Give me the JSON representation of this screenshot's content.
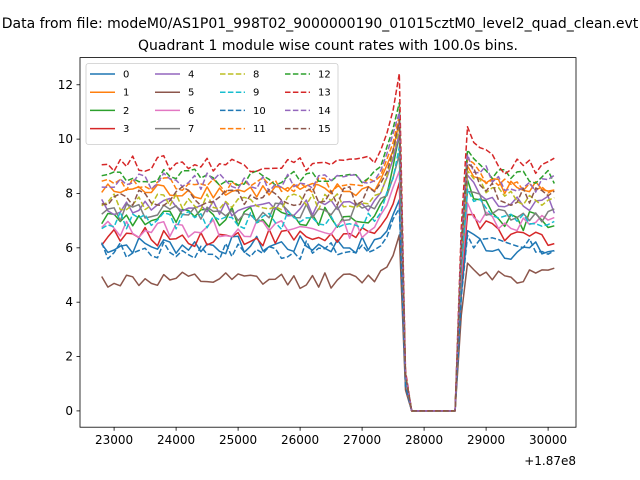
{
  "chart_data": {
    "type": "line",
    "suptitle": "Data from file: modeM0/AS1P01_998T02_9000000190_01015cztM0_level2_quad_clean.evt",
    "title": "Quadrant 1 module wise count rates with 100.0s bins.",
    "xlabel": "",
    "ylabel": "",
    "x_offset_label": "+1.87e8",
    "xlim": [
      22450,
      30450
    ],
    "ylim": [
      -0.6,
      13.0
    ],
    "x_ticks": [
      23000,
      24000,
      25000,
      26000,
      27000,
      28000,
      29000,
      30000
    ],
    "y_ticks": [
      0,
      2,
      4,
      6,
      8,
      10,
      12
    ],
    "x_start": 22800,
    "x_step": 100,
    "gap_start": 27750,
    "gap_end": 28550,
    "series": [
      {
        "name": "0",
        "color": "#1f77b4",
        "dashed": false,
        "level": 6.1,
        "jitter": 0.35,
        "peak": 7.8,
        "post": 5.9
      },
      {
        "name": "1",
        "color": "#ff7f0e",
        "dashed": false,
        "level": 8.1,
        "jitter": 0.3,
        "peak": 10.6,
        "post": 8.2
      },
      {
        "name": "2",
        "color": "#2ca02c",
        "dashed": false,
        "level": 7.1,
        "jitter": 0.4,
        "peak": 10.0,
        "post": 7.0
      },
      {
        "name": "3",
        "color": "#d62728",
        "dashed": false,
        "level": 6.4,
        "jitter": 0.35,
        "peak": 8.5,
        "post": 6.4
      },
      {
        "name": "4",
        "color": "#9467bd",
        "dashed": false,
        "level": 7.5,
        "jitter": 0.35,
        "peak": 10.2,
        "post": 7.6
      },
      {
        "name": "5",
        "color": "#8c564b",
        "dashed": false,
        "level": 4.8,
        "jitter": 0.3,
        "peak": 6.4,
        "post": 5.0
      },
      {
        "name": "6",
        "color": "#e377c2",
        "dashed": false,
        "level": 6.7,
        "jitter": 0.35,
        "peak": 9.0,
        "post": 6.9
      },
      {
        "name": "7",
        "color": "#7f7f7f",
        "dashed": false,
        "level": 7.3,
        "jitter": 0.35,
        "peak": 9.5,
        "post": 7.3
      },
      {
        "name": "8",
        "color": "#bcbd22",
        "dashed": true,
        "level": 7.7,
        "jitter": 0.3,
        "peak": 10.4,
        "post": 7.8
      },
      {
        "name": "9",
        "color": "#17becf",
        "dashed": true,
        "level": 7.0,
        "jitter": 0.35,
        "peak": 9.6,
        "post": 7.0
      },
      {
        "name": "10",
        "color": "#1f77b4",
        "dashed": true,
        "level": 5.9,
        "jitter": 0.35,
        "peak": 7.6,
        "post": 6.0
      },
      {
        "name": "11",
        "color": "#ff7f0e",
        "dashed": true,
        "level": 8.3,
        "jitter": 0.3,
        "peak": 10.9,
        "post": 8.3
      },
      {
        "name": "12",
        "color": "#2ca02c",
        "dashed": true,
        "level": 8.6,
        "jitter": 0.3,
        "peak": 11.3,
        "post": 8.6
      },
      {
        "name": "13",
        "color": "#d62728",
        "dashed": true,
        "level": 9.1,
        "jitter": 0.3,
        "peak": 12.3,
        "post": 9.0
      },
      {
        "name": "14",
        "color": "#9467bd",
        "dashed": true,
        "level": 8.4,
        "jitter": 0.35,
        "peak": 11.1,
        "post": 8.4
      },
      {
        "name": "15",
        "color": "#8c564b",
        "dashed": true,
        "level": 7.9,
        "jitter": 0.35,
        "peak": 10.7,
        "post": 7.9
      }
    ]
  }
}
